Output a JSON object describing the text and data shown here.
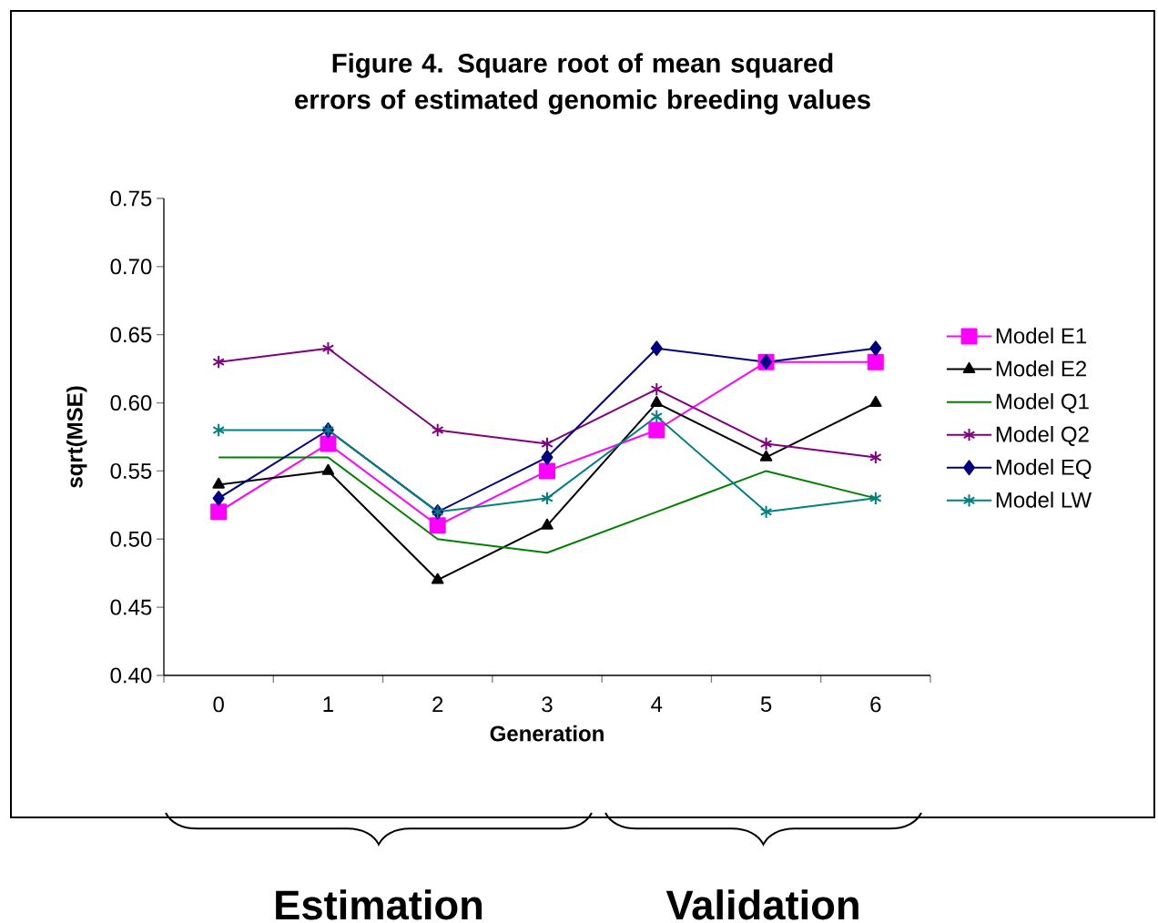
{
  "chart_data": {
    "type": "line",
    "title": "Figure 4. Square root of mean squared errors of estimated genomic breeding values",
    "xlabel": "Generation",
    "ylabel": "sqrt(MSE)",
    "categories": [
      "0",
      "1",
      "2",
      "3",
      "4",
      "5",
      "6"
    ],
    "ylim": [
      0.4,
      0.75
    ],
    "yticks": [
      {
        "value": 0.4,
        "label": "0.40"
      },
      {
        "value": 0.45,
        "label": "0.45"
      },
      {
        "value": 0.5,
        "label": "0.50"
      },
      {
        "value": 0.55,
        "label": "0.55"
      },
      {
        "value": 0.6,
        "label": "0.60"
      },
      {
        "value": 0.65,
        "label": "0.65"
      },
      {
        "value": 0.7,
        "label": "0.70"
      },
      {
        "value": 0.75,
        "label": "0.75"
      }
    ],
    "legend": "right",
    "grid": false,
    "series": [
      {
        "name": "Model E1",
        "color": "#ff00ff",
        "marker": "square",
        "values": [
          0.52,
          0.57,
          0.51,
          0.55,
          0.58,
          0.63,
          0.63
        ]
      },
      {
        "name": "Model E2",
        "color": "#000000",
        "marker": "triangle",
        "values": [
          0.54,
          0.55,
          0.47,
          0.51,
          0.6,
          0.56,
          0.6
        ]
      },
      {
        "name": "Model Q1",
        "color": "#008000",
        "marker": "none",
        "values": [
          0.56,
          0.56,
          0.5,
          0.49,
          0.52,
          0.55,
          0.53
        ]
      },
      {
        "name": "Model Q2",
        "color": "#800080",
        "marker": "cross",
        "values": [
          0.63,
          0.64,
          0.58,
          0.57,
          0.61,
          0.57,
          0.56
        ]
      },
      {
        "name": "Model EQ",
        "color": "#000080",
        "marker": "diamond",
        "values": [
          0.53,
          0.58,
          0.52,
          0.56,
          0.64,
          0.63,
          0.64
        ]
      },
      {
        "name": "Model LW",
        "color": "#008080",
        "marker": "cross",
        "values": [
          0.58,
          0.58,
          0.52,
          0.53,
          0.59,
          0.52,
          0.53
        ]
      }
    ],
    "annotations": [
      "Estimation",
      "Validation"
    ]
  }
}
